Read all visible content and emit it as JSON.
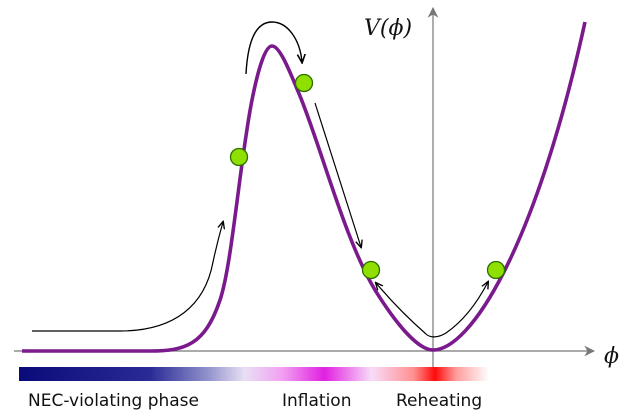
{
  "axes": {
    "y_label": "V(ϕ)",
    "x_label": "ϕ"
  },
  "phases": {
    "nec": "NEC-violating phase",
    "inflation": "Inflation",
    "reheating": "Reheating"
  },
  "colors": {
    "potential_curve": "#7a1a8c",
    "ball_fill": "#8fe000",
    "ball_stroke": "#2c6e00",
    "axis": "#777777",
    "arrow": "#000000",
    "bar_nec": "#10107f",
    "bar_inflation": "#e040e0",
    "bar_reheating": "#ff1010"
  }
}
